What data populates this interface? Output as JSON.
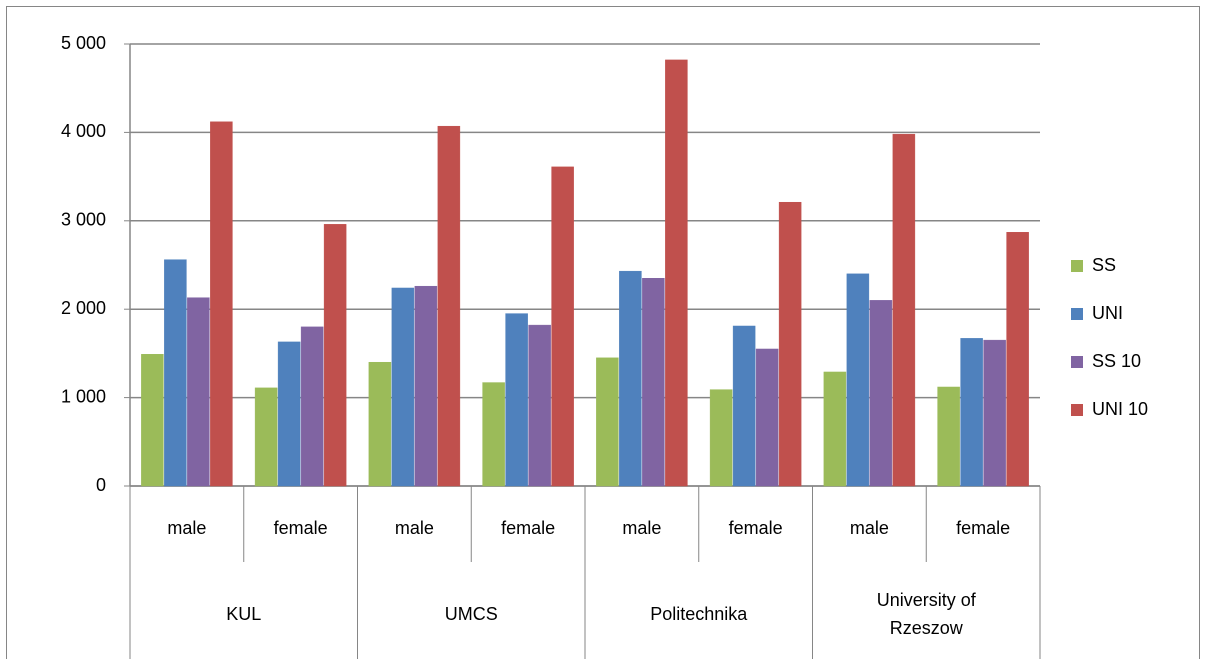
{
  "chart_data": {
    "type": "bar",
    "categories": [
      "male",
      "female",
      "male",
      "female",
      "male",
      "female",
      "male",
      "female"
    ],
    "groups": [
      "KUL",
      "UMCS",
      "Politechnika",
      "University of Rzeszow"
    ],
    "series": [
      {
        "name": "SS",
        "color": "#9bbb59",
        "values": [
          1490,
          1110,
          1400,
          1170,
          1450,
          1090,
          1290,
          1120
        ]
      },
      {
        "name": "UNI",
        "color": "#4f81bd",
        "values": [
          2560,
          1630,
          2240,
          1950,
          2430,
          1810,
          2400,
          1670
        ]
      },
      {
        "name": "SS 10",
        "color": "#8064a2",
        "values": [
          2130,
          1800,
          2260,
          1820,
          2350,
          1550,
          2100,
          1650
        ]
      },
      {
        "name": "UNI 10",
        "color": "#c0504d",
        "values": [
          4120,
          2960,
          4070,
          3610,
          4820,
          3210,
          3980,
          2870
        ]
      }
    ],
    "ylim": [
      0,
      5000
    ],
    "yticks": [
      0,
      {
        "value": 1000,
        "label": "1 000"
      },
      {
        "value": 2000,
        "label": "2 000"
      },
      {
        "value": 3000,
        "label": "3 000"
      },
      {
        "value": 4000,
        "label": "4 000"
      },
      {
        "value": 5000,
        "label": "5 000"
      }
    ],
    "grid": true
  }
}
